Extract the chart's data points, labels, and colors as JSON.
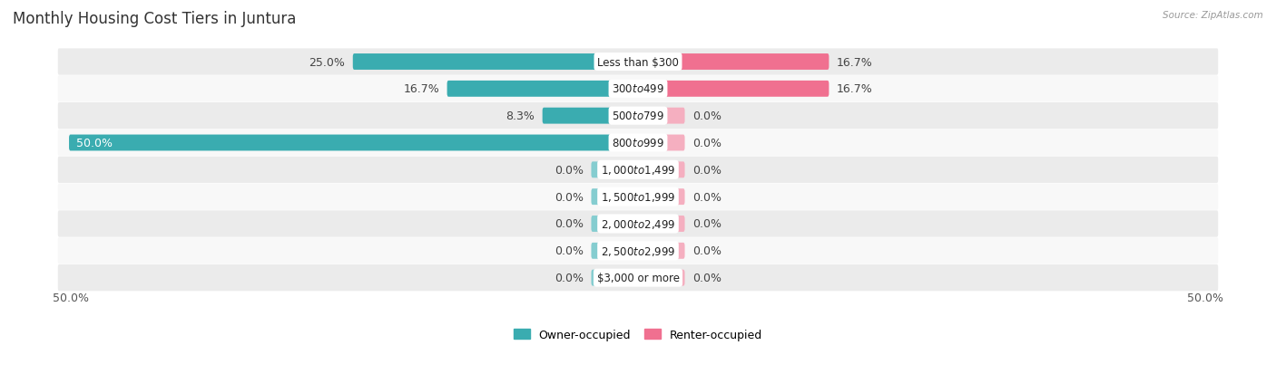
{
  "title": "Monthly Housing Cost Tiers in Juntura",
  "source": "Source: ZipAtlas.com",
  "categories": [
    "Less than $300",
    "$300 to $499",
    "$500 to $799",
    "$800 to $999",
    "$1,000 to $1,499",
    "$1,500 to $1,999",
    "$2,000 to $2,499",
    "$2,500 to $2,999",
    "$3,000 or more"
  ],
  "owner_values": [
    25.0,
    16.7,
    8.3,
    50.0,
    0.0,
    0.0,
    0.0,
    0.0,
    0.0
  ],
  "renter_values": [
    16.7,
    16.7,
    0.0,
    0.0,
    0.0,
    0.0,
    0.0,
    0.0,
    0.0
  ],
  "owner_color": "#3aacb0",
  "renter_color": "#f07090",
  "owner_color_stub": "#85cdd0",
  "renter_color_stub": "#f5afc0",
  "row_bg_light": "#ebebeb",
  "row_bg_white": "#f8f8f8",
  "max_value": 50.0,
  "stub_value": 4.0,
  "legend_owner": "Owner-occupied",
  "legend_renter": "Renter-occupied",
  "bottom_left_label": "50.0%",
  "bottom_right_label": "50.0%",
  "label_fontsize": 9.0,
  "cat_fontsize": 8.5,
  "title_fontsize": 12
}
